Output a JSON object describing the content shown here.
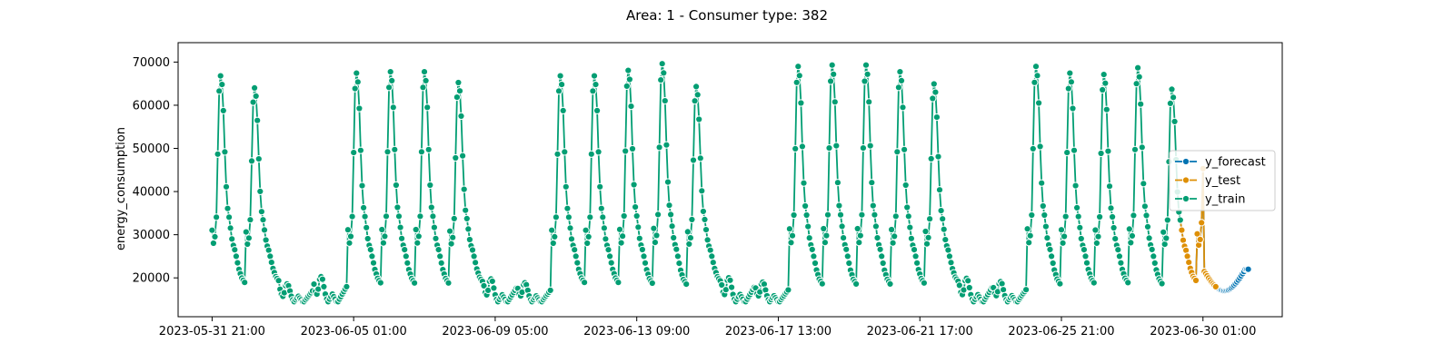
{
  "chart_data": {
    "type": "line",
    "title": "Area: 1 - Consumer type: 382",
    "xlabel": "",
    "ylabel": "energy_consumption",
    "x_unit": "hours since 2023-05-31 21:00",
    "xlim": [
      -24,
      756
    ],
    "ylim": [
      11000,
      74500
    ],
    "x_ticks": [
      0,
      100,
      200,
      300,
      400,
      500,
      600,
      700
    ],
    "x_tick_labels": [
      "2023-05-31 21:00",
      "2023-06-05 01:00",
      "2023-06-09 05:00",
      "2023-06-13 09:00",
      "2023-06-17 13:00",
      "2023-06-21 17:00",
      "2023-06-25 21:00",
      "2023-06-30 01:00"
    ],
    "y_ticks": [
      20000,
      30000,
      40000,
      50000,
      60000,
      70000
    ],
    "y_tick_labels": [
      "20000",
      "30000",
      "40000",
      "50000",
      "60000",
      "70000"
    ],
    "grid": false,
    "legend_position": "right",
    "series": [
      {
        "name": "y_forecast",
        "color": "#0173b2",
        "x_start": 684,
        "x_end": 732
      },
      {
        "name": "y_test",
        "color": "#de8f05",
        "x_start": 684,
        "x_end": 709
      },
      {
        "name": "y_train",
        "color": "#029e73",
        "x_start": 0,
        "x_end": 684
      }
    ],
    "daily_profile": {
      "hours_of_day_from_start": [
        0,
        1,
        2,
        3,
        4,
        5,
        6,
        7,
        8,
        9,
        10,
        11,
        12,
        13,
        14,
        15,
        16,
        17,
        18,
        19,
        20,
        21,
        22,
        23
      ],
      "weekday_values": [
        31000,
        28000,
        29500,
        34000,
        48500,
        63000,
        66500,
        64500,
        58500,
        49000,
        41000,
        36000,
        34000,
        31500,
        29000,
        27500,
        26500,
        25000,
        23500,
        22000,
        21000,
        20000,
        19500,
        19000
      ],
      "weekend_values": [
        18000,
        16500,
        16000,
        17000,
        19000,
        19500,
        19000,
        17500,
        16000,
        15000,
        14500,
        15000,
        15500,
        16000,
        15500,
        15000,
        14500,
        14500,
        15000,
        15500,
        16000,
        16500,
        17000,
        17500
      ]
    },
    "day_peaks": [
      67000,
      62500,
      16000,
      22500,
      68000,
      68500,
      68500,
      64500,
      20500,
      17000,
      67000,
      67000,
      69000,
      71500,
      63000,
      21500,
      17500,
      70500,
      71000,
      71000,
      68500,
      64000,
      21000,
      18000,
      70500,
      68000,
      67500,
      70000,
      62000,
      57500,
      48000
    ],
    "day_types": [
      "W",
      "W",
      "E",
      "E",
      "W",
      "W",
      "W",
      "W",
      "E",
      "E",
      "W",
      "W",
      "W",
      "W",
      "W",
      "E",
      "E",
      "W",
      "W",
      "W",
      "W",
      "W",
      "E",
      "E",
      "W",
      "W",
      "W",
      "W",
      "W",
      "W",
      "W"
    ]
  }
}
